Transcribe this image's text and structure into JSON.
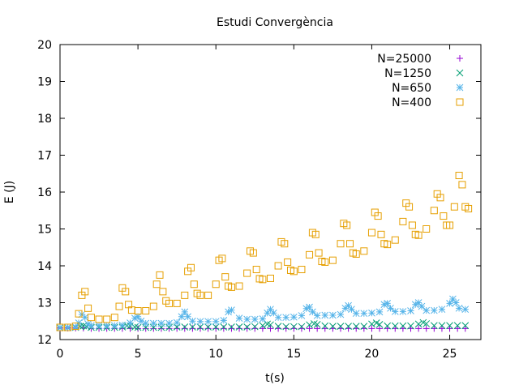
{
  "chart_data": {
    "type": "scatter",
    "title": "Estudi Convergència",
    "xlabel": "t(s)",
    "ylabel": "E (J)",
    "xlim": [
      0,
      27
    ],
    "ylim": [
      12,
      20
    ],
    "xticks": [
      0,
      5,
      10,
      15,
      20,
      25
    ],
    "yticks": [
      12,
      13,
      14,
      15,
      16,
      17,
      18,
      19,
      20
    ],
    "grid": false,
    "legend_position": "top-right",
    "series": [
      {
        "name": "N=25000",
        "marker": "plus",
        "color": "#9400d3",
        "x": [
          0.0,
          0.5,
          1.0,
          1.5,
          2.0,
          2.5,
          3.0,
          3.5,
          4.0,
          4.5,
          5.0,
          5.5,
          6.0,
          6.5,
          7.0,
          7.5,
          8.0,
          8.5,
          9.0,
          9.5,
          10.0,
          10.5,
          11.0,
          11.5,
          12.0,
          12.5,
          13.0,
          13.5,
          14.0,
          14.5,
          15.0,
          15.5,
          16.0,
          16.5,
          17.0,
          17.5,
          18.0,
          18.5,
          19.0,
          19.5,
          20.0,
          20.5,
          21.0,
          21.5,
          22.0,
          22.5,
          23.0,
          23.5,
          24.0,
          24.5,
          25.0,
          25.5,
          26.0
        ],
        "y": [
          12.31,
          12.31,
          12.31,
          12.31,
          12.3,
          12.3,
          12.3,
          12.3,
          12.3,
          12.3,
          12.3,
          12.3,
          12.3,
          12.3,
          12.3,
          12.3,
          12.3,
          12.3,
          12.3,
          12.3,
          12.3,
          12.3,
          12.3,
          12.3,
          12.3,
          12.3,
          12.3,
          12.3,
          12.3,
          12.3,
          12.3,
          12.3,
          12.3,
          12.3,
          12.3,
          12.3,
          12.3,
          12.3,
          12.3,
          12.3,
          12.3,
          12.3,
          12.3,
          12.3,
          12.3,
          12.3,
          12.3,
          12.3,
          12.3,
          12.3,
          12.3,
          12.3,
          12.3
        ]
      },
      {
        "name": "N=1250",
        "marker": "cross",
        "color": "#009e73",
        "x": [
          0.0,
          0.5,
          1.0,
          1.3,
          1.5,
          1.7,
          2.0,
          2.5,
          3.0,
          3.5,
          4.0,
          4.3,
          4.5,
          4.8,
          5.0,
          5.5,
          6.0,
          6.5,
          7.0,
          7.5,
          8.0,
          8.5,
          9.0,
          9.5,
          10.0,
          10.5,
          11.0,
          11.5,
          12.0,
          12.5,
          13.0,
          13.3,
          13.5,
          14.0,
          14.5,
          15.0,
          15.5,
          16.0,
          16.3,
          16.5,
          17.0,
          17.5,
          18.0,
          18.5,
          19.0,
          19.5,
          20.0,
          20.3,
          20.5,
          21.0,
          21.5,
          22.0,
          22.5,
          23.0,
          23.3,
          23.5,
          24.0,
          24.5,
          25.0,
          25.5,
          26.0
        ],
        "y": [
          12.32,
          12.32,
          12.33,
          12.36,
          12.37,
          12.35,
          12.33,
          12.33,
          12.33,
          12.33,
          12.34,
          12.38,
          12.37,
          12.34,
          12.33,
          12.33,
          12.33,
          12.33,
          12.33,
          12.34,
          12.34,
          12.34,
          12.34,
          12.34,
          12.34,
          12.34,
          12.34,
          12.34,
          12.34,
          12.35,
          12.38,
          12.42,
          12.4,
          12.36,
          12.35,
          12.35,
          12.35,
          12.4,
          12.43,
          12.41,
          12.37,
          12.36,
          12.36,
          12.36,
          12.36,
          12.36,
          12.42,
          12.45,
          12.41,
          12.37,
          12.37,
          12.37,
          12.37,
          12.42,
          12.46,
          12.43,
          12.38,
          12.38,
          12.38,
          12.38,
          12.38
        ]
      },
      {
        "name": "N=650",
        "marker": "star",
        "color": "#56b4e9",
        "x": [
          0.0,
          0.5,
          1.0,
          1.2,
          1.4,
          1.6,
          1.8,
          2.0,
          2.5,
          3.0,
          3.5,
          4.0,
          4.5,
          4.8,
          5.0,
          5.2,
          5.5,
          6.0,
          6.5,
          7.0,
          7.5,
          7.8,
          8.0,
          8.2,
          8.5,
          9.0,
          9.5,
          10.0,
          10.5,
          10.8,
          11.0,
          11.5,
          12.0,
          12.5,
          13.0,
          13.3,
          13.5,
          13.7,
          14.0,
          14.5,
          15.0,
          15.5,
          15.8,
          16.0,
          16.2,
          16.5,
          17.0,
          17.5,
          18.0,
          18.3,
          18.5,
          18.7,
          19.0,
          19.5,
          20.0,
          20.5,
          20.8,
          21.0,
          21.2,
          21.5,
          22.0,
          22.5,
          22.8,
          23.0,
          23.2,
          23.5,
          24.0,
          24.5,
          25.0,
          25.2,
          25.4,
          25.6,
          26.0
        ],
        "y": [
          12.33,
          12.33,
          12.34,
          12.45,
          12.68,
          12.6,
          12.42,
          12.38,
          12.38,
          12.38,
          12.38,
          12.39,
          12.45,
          12.58,
          12.62,
          12.5,
          12.44,
          12.44,
          12.44,
          12.44,
          12.46,
          12.62,
          12.75,
          12.62,
          12.5,
          12.49,
          12.49,
          12.49,
          12.52,
          12.75,
          12.8,
          12.58,
          12.55,
          12.55,
          12.56,
          12.72,
          12.82,
          12.72,
          12.6,
          12.6,
          12.61,
          12.65,
          12.84,
          12.88,
          12.75,
          12.65,
          12.66,
          12.66,
          12.68,
          12.85,
          12.92,
          12.82,
          12.71,
          12.71,
          12.72,
          12.75,
          12.95,
          12.98,
          12.85,
          12.76,
          12.76,
          12.78,
          12.95,
          13.0,
          12.9,
          12.79,
          12.79,
          12.82,
          12.98,
          13.1,
          13.0,
          12.85,
          12.82
        ]
      },
      {
        "name": "N=400",
        "marker": "square",
        "color": "#e69f00",
        "x": [
          0.0,
          0.5,
          1.0,
          1.2,
          1.4,
          1.6,
          1.8,
          2.0,
          2.5,
          3.0,
          3.5,
          3.8,
          4.0,
          4.2,
          4.4,
          4.6,
          5.0,
          5.5,
          6.0,
          6.2,
          6.4,
          6.6,
          6.8,
          7.0,
          7.5,
          8.0,
          8.2,
          8.4,
          8.6,
          8.8,
          9.0,
          9.5,
          10.0,
          10.2,
          10.4,
          10.6,
          10.8,
          11.0,
          11.5,
          12.0,
          12.2,
          12.4,
          12.6,
          12.8,
          13.0,
          13.5,
          14.0,
          14.2,
          14.4,
          14.6,
          14.8,
          15.0,
          15.5,
          16.0,
          16.2,
          16.4,
          16.6,
          16.8,
          17.0,
          17.5,
          18.0,
          18.2,
          18.4,
          18.6,
          18.8,
          19.0,
          19.5,
          20.0,
          20.2,
          20.4,
          20.6,
          20.8,
          21.0,
          21.5,
          22.0,
          22.2,
          22.4,
          22.6,
          22.8,
          23.0,
          23.5,
          24.0,
          24.2,
          24.4,
          24.6,
          24.8,
          25.0,
          25.3,
          25.6,
          25.8,
          26.0,
          26.2
        ],
        "y": [
          12.33,
          12.33,
          12.36,
          12.7,
          13.2,
          13.3,
          12.85,
          12.6,
          12.55,
          12.55,
          12.6,
          12.9,
          13.4,
          13.3,
          12.95,
          12.8,
          12.78,
          12.78,
          12.9,
          13.5,
          13.75,
          13.3,
          13.05,
          12.98,
          12.98,
          13.2,
          13.85,
          13.95,
          13.5,
          13.25,
          13.2,
          13.2,
          13.5,
          14.15,
          14.2,
          13.7,
          13.45,
          13.42,
          13.45,
          13.8,
          14.4,
          14.35,
          13.9,
          13.65,
          13.63,
          13.66,
          14.0,
          14.65,
          14.6,
          14.1,
          13.88,
          13.85,
          13.9,
          14.3,
          14.9,
          14.85,
          14.35,
          14.12,
          14.1,
          14.15,
          14.6,
          15.15,
          15.1,
          14.6,
          14.35,
          14.32,
          14.4,
          14.9,
          15.45,
          15.35,
          14.85,
          14.6,
          14.58,
          14.7,
          15.2,
          15.7,
          15.6,
          15.1,
          14.85,
          14.83,
          15.0,
          15.5,
          15.95,
          15.85,
          15.35,
          15.1,
          15.1,
          15.6,
          16.45,
          16.2,
          15.6,
          15.55
        ]
      }
    ]
  }
}
